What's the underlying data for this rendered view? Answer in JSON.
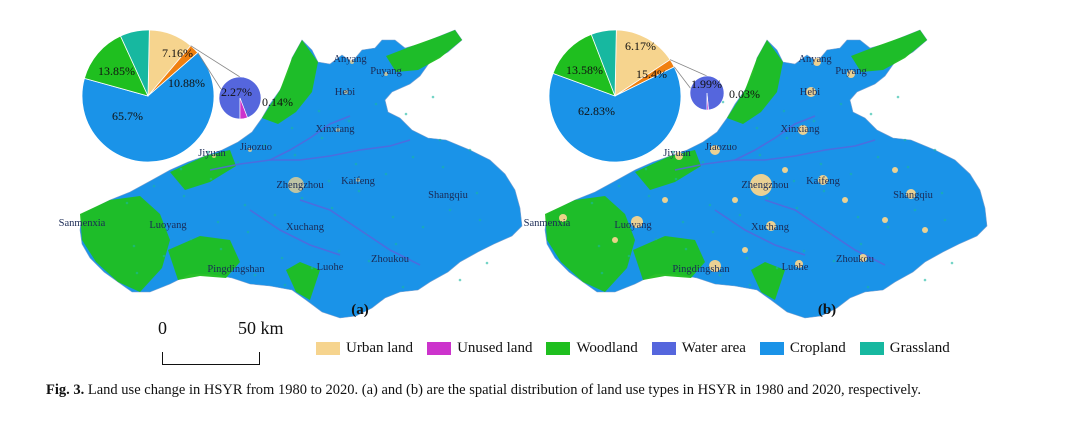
{
  "colors": {
    "urban": "#f6d48e",
    "unused": "#cc33cc",
    "woodland": "#1fbf1f",
    "water": "#5566dd",
    "cropland": "#1a93e8",
    "grassland": "#17b8a0",
    "other": "#f08010"
  },
  "legend": [
    {
      "label": "Urban land",
      "color": "#f6d48e"
    },
    {
      "label": "Unused land",
      "color": "#cc33cc"
    },
    {
      "label": "Woodland",
      "color": "#1fbf1f"
    },
    {
      "label": "Water area",
      "color": "#5566dd"
    },
    {
      "label": "Cropland",
      "color": "#1a93e8"
    },
    {
      "label": "Grassland",
      "color": "#17b8a0"
    }
  ],
  "panels": [
    {
      "tag": "(a)",
      "pie": [
        {
          "class": "cropland",
          "value": 65.7,
          "label": "65.7%"
        },
        {
          "class": "woodland",
          "value": 13.85,
          "label": "13.85%"
        },
        {
          "class": "grassland",
          "value": 7.16,
          "label": "7.16%"
        },
        {
          "class": "urban",
          "value": 10.88,
          "label": "10.88%"
        },
        {
          "class": "other",
          "value": 2.41,
          "label": ""
        }
      ],
      "subpie": [
        {
          "class": "water",
          "value": 2.27,
          "label": "2.27%"
        },
        {
          "class": "unused",
          "value": 0.14,
          "label": "0.14%"
        }
      ],
      "cities": [
        "Anyang",
        "Puyang",
        "Hebi",
        "Xinxiang",
        "Jiyuan",
        "Jiaozuo",
        "Zhengzhou",
        "Kaifeng",
        "Shangqiu",
        "Sanmenxia",
        "Luoyang",
        "Xuchang",
        "Pingdingshan",
        "Luohe",
        "Zhoukou"
      ]
    },
    {
      "tag": "(b)",
      "pie": [
        {
          "class": "cropland",
          "value": 62.83,
          "label": "62.83%"
        },
        {
          "class": "woodland",
          "value": 13.58,
          "label": "13.58%"
        },
        {
          "class": "grassland",
          "value": 6.17,
          "label": "6.17%"
        },
        {
          "class": "urban",
          "value": 15.4,
          "label": "15.4%"
        },
        {
          "class": "other",
          "value": 2.02,
          "label": ""
        }
      ],
      "subpie": [
        {
          "class": "water",
          "value": 1.99,
          "label": "1.99%"
        },
        {
          "class": "unused",
          "value": 0.03,
          "label": "0.03%"
        }
      ],
      "cities": [
        "Anyang",
        "Puyang",
        "Hebi",
        "Xinxiang",
        "Jiyuan",
        "Jiaozuo",
        "Zhengzhou",
        "Kaifeng",
        "Shangqiu",
        "Sanmenxia",
        "Luoyang",
        "Xuchang",
        "Pingdingshan",
        "Luohe",
        "Zhoukou"
      ]
    }
  ],
  "scale": {
    "zero": "0",
    "distance": "50 km"
  },
  "caption": {
    "prefix": "Fig. 3.",
    "text": "Land use change in HSYR from 1980 to 2020. (a) and (b) are the spatial distribution of land use types in HSYR in 1980 and 2020, respectively."
  }
}
